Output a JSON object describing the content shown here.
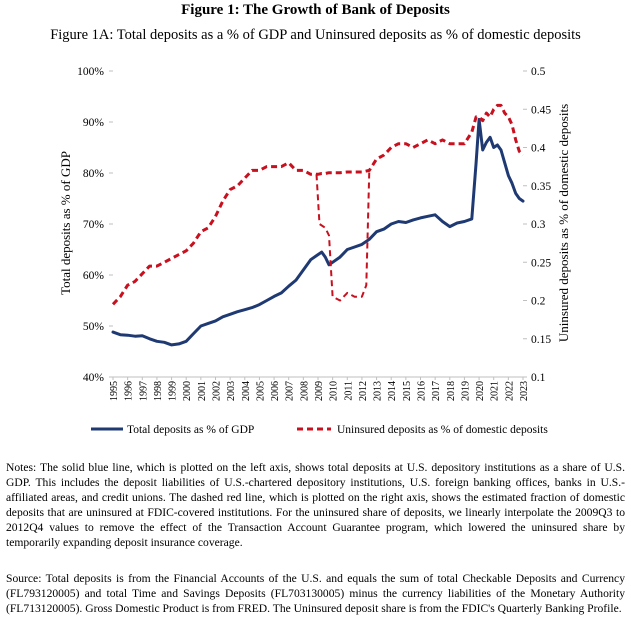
{
  "figure": {
    "title": "Figure 1: The Growth of Bank of Deposits",
    "subtitle": "Figure 1A: Total deposits as a % of GDP and Uninsured deposits as % of domestic deposits",
    "notes": "Notes: The solid blue line, which is plotted on the left axis, shows total deposits at U.S. depository institutions as a share of U.S. GDP. This includes the deposit liabilities of U.S.-chartered depository institutions, U.S. foreign banking offices, banks in U.S.-affiliated areas, and credit unions. The dashed red line, which is plotted on the right axis, shows the estimated fraction of domestic deposits that are uninsured at FDIC-covered institutions. For the uninsured share of deposits, we linearly interpolate the 2009Q3 to 2012Q4 values to remove the effect of the Transaction Account Guarantee program, which lowered the uninsured share by temporarily expanding deposit insurance coverage.",
    "source": "Source: Total deposits is from the Financial Accounts of the U.S. and equals the sum of total Checkable Deposits and Currency (FL793120005) and total Time and Savings Deposits (FL703130005) minus the currency liabilities of the Monetary Authority (FL713120005). Gross Domestic Product is from FRED. The Uninsured deposit share is from the FDIC's Quarterly Banking Profile."
  },
  "chart_data": {
    "type": "line",
    "x": [
      1995,
      1995.5,
      1996,
      1996.5,
      1997,
      1997.5,
      1998,
      1998.5,
      1999,
      1999.5,
      2000,
      2000.5,
      2001,
      2001.5,
      2002,
      2002.5,
      2003,
      2003.5,
      2004,
      2004.5,
      2005,
      2005.5,
      2006,
      2006.5,
      2007,
      2007.5,
      2008,
      2008.5,
      2009,
      2009.25,
      2009.5,
      2009.75,
      2010,
      2010.5,
      2011,
      2011.5,
      2012,
      2012.5,
      2013,
      2013.5,
      2014,
      2014.5,
      2015,
      2015.5,
      2016,
      2016.5,
      2017,
      2017.5,
      2018,
      2018.5,
      2019,
      2019.5,
      2019.8,
      2020,
      2020.25,
      2020.5,
      2020.75,
      2021,
      2021.25,
      2021.5,
      2021.75,
      2022,
      2022.25,
      2022.5,
      2022.75,
      2023
    ],
    "x_tick_labels": [
      "1995",
      "1996",
      "1997",
      "1998",
      "1999",
      "2000",
      "2001",
      "2002",
      "2003",
      "2004",
      "2005",
      "2006",
      "2007",
      "2008",
      "2009",
      "2010",
      "2011",
      "2012",
      "2013",
      "2014",
      "2015",
      "2016",
      "2017",
      "2018",
      "2019",
      "2020",
      "2021",
      "2022",
      "2023"
    ],
    "x_range": [
      1995,
      2023
    ],
    "left_axis": {
      "label": "Total deposits as % of GDP",
      "range": [
        40,
        100
      ],
      "ticks": [
        "40%",
        "50%",
        "60%",
        "70%",
        "80%",
        "90%",
        "100%"
      ]
    },
    "right_axis": {
      "label": "Uninsured deposits as % of domestic deposits",
      "range": [
        0.1,
        0.5
      ],
      "ticks": [
        "0.1",
        "0.15",
        "0.2",
        "0.25",
        "0.3",
        "0.35",
        "0.4",
        "0.45",
        "0.5"
      ]
    },
    "series": [
      {
        "name": "Total deposits as % of GDP",
        "axis": "left",
        "color": "#1f3a73",
        "style": "solid",
        "values": [
          48.8,
          48.3,
          48.2,
          48.0,
          48.1,
          47.5,
          47.0,
          46.8,
          46.3,
          46.5,
          47.0,
          48.5,
          50.0,
          50.5,
          51.0,
          51.8,
          52.3,
          52.8,
          53.2,
          53.6,
          54.2,
          55.0,
          55.8,
          56.5,
          57.8,
          59.0,
          61.0,
          63.0,
          64.0,
          64.5,
          63.5,
          62.0,
          62.5,
          63.5,
          65.0,
          65.5,
          66.0,
          67.0,
          68.5,
          69.0,
          70.0,
          70.5,
          70.3,
          70.8,
          71.2,
          71.5,
          71.8,
          70.5,
          69.5,
          70.2,
          70.5,
          71.0,
          82.0,
          90.5,
          84.5,
          86.0,
          87.0,
          85.0,
          85.5,
          84.5,
          82.0,
          79.5,
          78.0,
          76.0,
          75.0,
          74.5
        ]
      },
      {
        "name": "Uninsured deposits as % of domestic deposits",
        "axis": "right",
        "color": "#c8101e",
        "style": "dashed",
        "values": [
          0.195,
          0.205,
          0.22,
          0.225,
          0.235,
          0.245,
          0.245,
          0.25,
          0.255,
          0.26,
          0.265,
          0.275,
          0.29,
          0.295,
          0.31,
          0.33,
          0.345,
          0.35,
          0.36,
          0.37,
          0.37,
          0.375,
          0.375,
          0.375,
          0.38,
          0.37,
          0.37,
          0.365,
          0.365,
          0.366,
          0.366,
          0.367,
          0.367,
          0.367,
          0.368,
          0.368,
          0.368,
          0.37,
          0.385,
          0.39,
          0.4,
          0.405,
          0.405,
          0.4,
          0.405,
          0.41,
          0.405,
          0.41,
          0.405,
          0.405,
          0.405,
          0.42,
          0.44,
          0.44,
          0.435,
          0.445,
          0.44,
          0.45,
          0.455,
          0.455,
          0.445,
          0.44,
          0.43,
          0.41,
          0.395,
          0.39
        ]
      },
      {
        "name": "",
        "axis": "right",
        "color": "#c8101e",
        "style": "dashed",
        "x": [
          2008.9,
          2009.1,
          2009.5,
          2009.75,
          2010,
          2010.5,
          2011,
          2011.5,
          2012,
          2012.3,
          2012.5
        ],
        "values": [
          0.365,
          0.3,
          0.295,
          0.285,
          0.205,
          0.2,
          0.21,
          0.205,
          0.205,
          0.22,
          0.37
        ]
      }
    ],
    "legend": {
      "position": "bottom",
      "entries": [
        "Total deposits as % of GDP",
        "Uninsured deposits as % of domestic deposits"
      ]
    }
  }
}
